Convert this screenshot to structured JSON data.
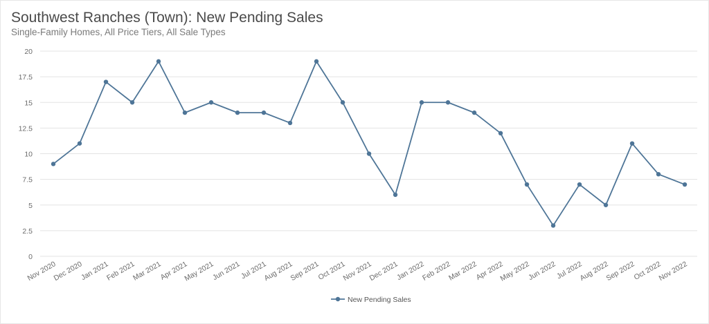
{
  "header": {
    "title": "Southwest Ranches (Town): New Pending Sales",
    "subtitle": "Single-Family Homes, All Price Tiers, All Sale Types"
  },
  "colors": {
    "series": "#4e7597",
    "grid": "#e3e3e3",
    "axis_text": "#6b6b6b"
  },
  "chart_data": {
    "type": "line",
    "title": "Southwest Ranches (Town): New Pending Sales",
    "subtitle": "Single-Family Homes, All Price Tiers, All Sale Types",
    "xlabel": "",
    "ylabel": "",
    "ylim": [
      0,
      20
    ],
    "yticks": [
      "0",
      "2.5",
      "5",
      "7.5",
      "10",
      "12.5",
      "15",
      "17.5",
      "20"
    ],
    "grid": true,
    "legend_position": "bottom-center",
    "categories": [
      "Nov 2020",
      "Dec 2020",
      "Jan 2021",
      "Feb 2021",
      "Mar 2021",
      "Apr 2021",
      "May 2021",
      "Jun 2021",
      "Jul 2021",
      "Aug 2021",
      "Sep 2021",
      "Oct 2021",
      "Nov 2021",
      "Dec 2021",
      "Jan 2022",
      "Feb 2022",
      "Mar 2022",
      "Apr 2022",
      "May 2022",
      "Jun 2022",
      "Jul 2022",
      "Aug 2022",
      "Sep 2022",
      "Oct 2022",
      "Nov 2022"
    ],
    "series": [
      {
        "name": "New Pending Sales",
        "values": [
          9,
          11,
          17,
          15,
          19,
          14,
          15,
          14,
          14,
          13,
          19,
          15,
          10,
          6,
          15,
          15,
          14,
          12,
          7,
          3,
          7,
          5,
          11,
          8,
          7
        ]
      }
    ]
  }
}
